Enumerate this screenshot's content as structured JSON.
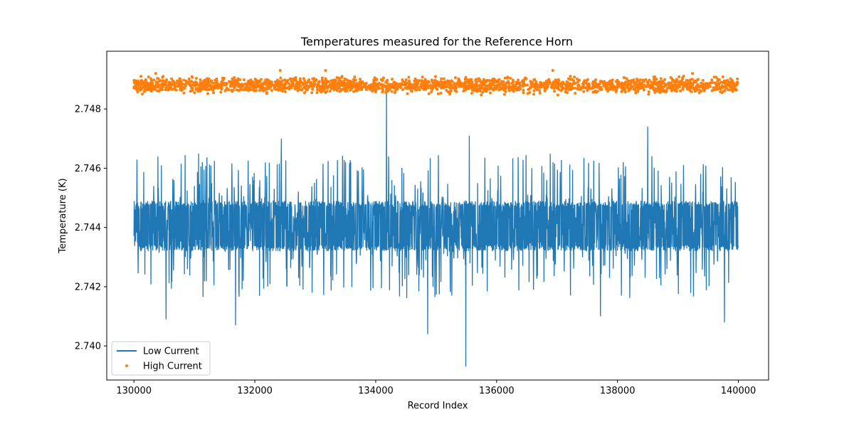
{
  "chart_data": {
    "type": "line",
    "title": "Temperatures measured for the Reference Horn",
    "xlabel": "Record Index",
    "ylabel": "Temperature (K)",
    "xlim": [
      129550,
      140500
    ],
    "ylim": [
      2.73885,
      2.74995
    ],
    "x_ticks": [
      130000,
      132000,
      134000,
      136000,
      138000,
      140000
    ],
    "y_ticks": [
      2.74,
      2.742,
      2.744,
      2.746,
      2.748
    ],
    "y_tick_labels": [
      "2.740",
      "2.742",
      "2.744",
      "2.746",
      "2.748"
    ],
    "legend_position": "lower-left",
    "series": [
      {
        "name": "Low Current",
        "style": "line",
        "color": "#1f77b4",
        "x_range": [
          130000,
          140000
        ],
        "band": [
          2.7432,
          2.7449
        ],
        "center": 2.7441,
        "notable_extremes": [
          {
            "x": 134180,
            "y": 2.7488
          },
          {
            "x": 135490,
            "y": 2.7393
          },
          {
            "x": 134860,
            "y": 2.7404
          },
          {
            "x": 131680,
            "y": 2.7407
          },
          {
            "x": 138500,
            "y": 2.7474
          },
          {
            "x": 132440,
            "y": 2.747
          },
          {
            "x": 135550,
            "y": 2.7471
          },
          {
            "x": 130530,
            "y": 2.7409
          },
          {
            "x": 139770,
            "y": 2.7408
          },
          {
            "x": 137720,
            "y": 2.741
          }
        ]
      },
      {
        "name": "High Current",
        "style": "scatter",
        "color": "#ff7f0e",
        "x_range": [
          130000,
          140000
        ],
        "band": [
          2.7486,
          2.749
        ],
        "center": 2.7488,
        "notable_extremes": [
          {
            "x": 132420,
            "y": 2.7493
          },
          {
            "x": 133170,
            "y": 2.7493
          },
          {
            "x": 136930,
            "y": 2.7493
          },
          {
            "x": 139240,
            "y": 2.7492
          },
          {
            "x": 130360,
            "y": 2.7492
          },
          {
            "x": 134200,
            "y": 2.7486
          }
        ]
      }
    ]
  }
}
